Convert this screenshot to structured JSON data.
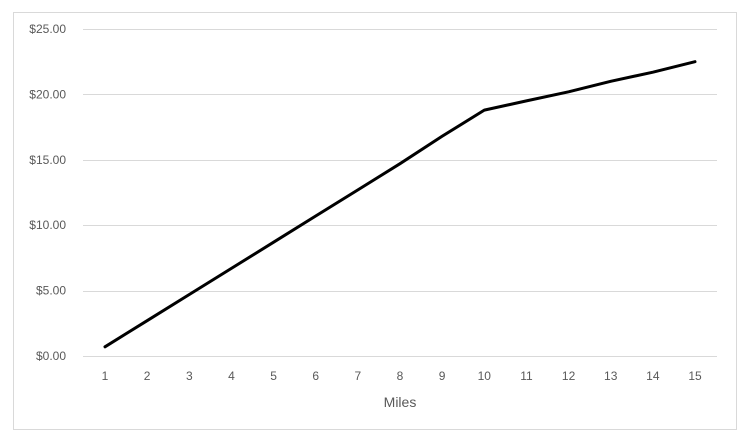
{
  "chart_data": {
    "type": "line",
    "title": "",
    "xlabel": "Miles",
    "ylabel": "",
    "x": [
      1,
      2,
      3,
      4,
      5,
      6,
      7,
      8,
      9,
      10,
      11,
      12,
      13,
      14,
      15
    ],
    "series": [
      {
        "values": [
          0.7,
          2.7,
          4.7,
          6.7,
          8.7,
          10.7,
          12.7,
          14.7,
          16.8,
          18.8,
          19.5,
          20.2,
          21.0,
          21.7,
          22.5
        ],
        "color": "#000000"
      }
    ],
    "ylim": [
      0,
      25
    ],
    "yticks": [
      0,
      5,
      10,
      15,
      20,
      25
    ],
    "ytick_labels": [
      "$0.00",
      "$5.00",
      "$10.00",
      "$15.00",
      "$20.00",
      "$25.00"
    ],
    "xtick_labels": [
      "1",
      "2",
      "3",
      "4",
      "5",
      "6",
      "7",
      "8",
      "9",
      "10",
      "11",
      "12",
      "13",
      "14",
      "15"
    ],
    "grid": true,
    "legend": "none"
  }
}
